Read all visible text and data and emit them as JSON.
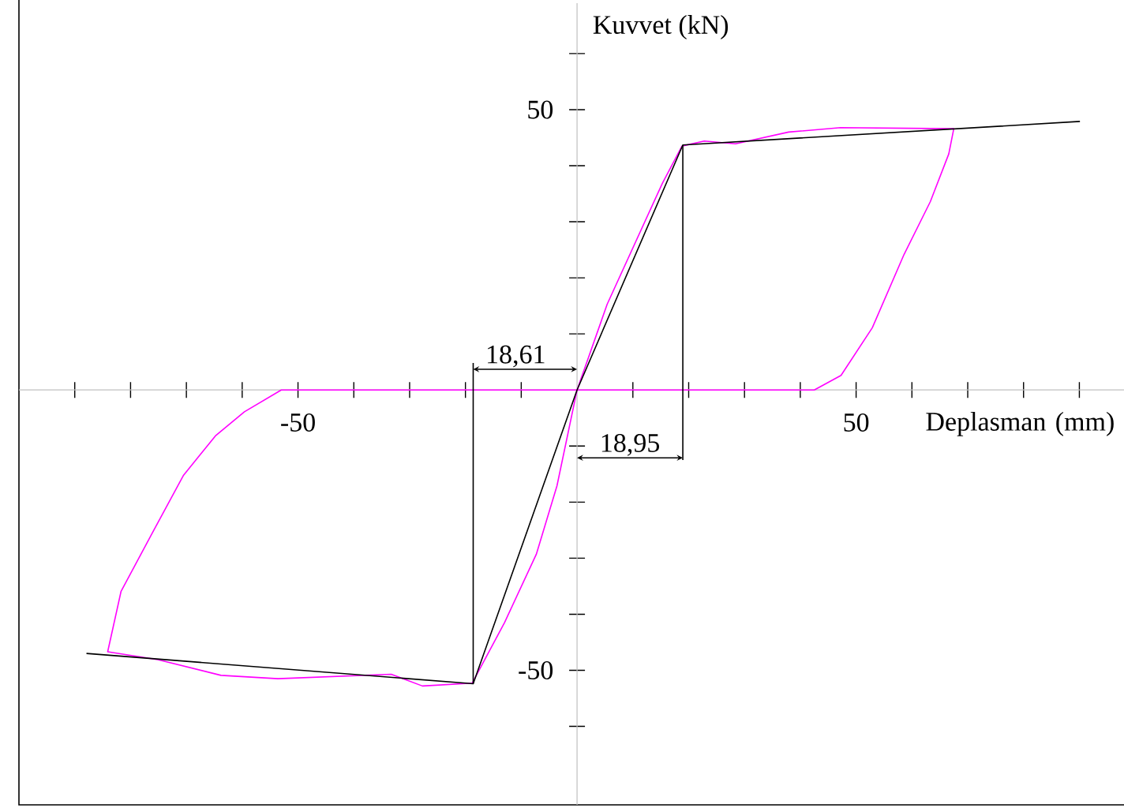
{
  "chart_data": {
    "type": "line",
    "xlabel": "Deplasman (mm)",
    "ylabel": "Kuvvet (kN)",
    "xlim": [
      -100,
      98
    ],
    "ylim": [
      -74,
      69
    ],
    "xticks": [
      {
        "value": -90,
        "label": null
      },
      {
        "value": -80,
        "label": null
      },
      {
        "value": -70,
        "label": null
      },
      {
        "value": -60,
        "label": null
      },
      -50,
      {
        "value": -40,
        "label": null
      },
      {
        "value": -30,
        "label": null
      },
      {
        "value": -20,
        "label": null
      },
      {
        "value": -10,
        "label": null
      },
      {
        "value": 10,
        "label": null
      },
      {
        "value": 20,
        "label": null
      },
      {
        "value": 30,
        "label": null
      },
      {
        "value": 40,
        "label": null
      },
      50,
      {
        "value": 60,
        "label": null
      },
      {
        "value": 70,
        "label": null
      },
      {
        "value": 80,
        "label": null
      },
      {
        "value": 90,
        "label": null
      }
    ],
    "yticks": [
      {
        "value": -60,
        "label": null
      },
      -50,
      {
        "value": -40,
        "label": null
      },
      {
        "value": -30,
        "label": null
      },
      {
        "value": -20,
        "label": null
      },
      {
        "value": -10,
        "label": null
      },
      {
        "value": 10,
        "label": null
      },
      {
        "value": 20,
        "label": null
      },
      {
        "value": 30,
        "label": null
      },
      {
        "value": 40,
        "label": null
      },
      50,
      {
        "value": 60,
        "label": null
      }
    ],
    "series": [
      {
        "color": "#ff00ff",
        "x": [
          0,
          5.4,
          15.3,
          18.8,
          22.8,
          28.4,
          37.9,
          47.2,
          67.5,
          66.6,
          63.3,
          58.6,
          52.9,
          47.3,
          42.5,
          -53,
          -59.6,
          -64.8,
          -70.5,
          -76.1,
          -81.7,
          -84.1,
          -75.1,
          -63.8,
          -53.6,
          -33.3,
          -27.7,
          -18.8,
          -13,
          -7.3,
          -3.6,
          0,
          5.4
        ],
        "values": [
          0,
          15.3,
          36.9,
          43.5,
          44.4,
          43.9,
          46.0,
          46.8,
          46.6,
          42.1,
          33.6,
          24.2,
          11.1,
          2.6,
          0,
          0,
          -3.9,
          -8.2,
          -15.2,
          -25.5,
          -35.9,
          -46.7,
          -48.1,
          -50.9,
          -51.5,
          -50.7,
          -52.8,
          -52.3,
          -41.5,
          -29.3,
          -17.1,
          0,
          15.3
        ]
      },
      {
        "color": "#000000",
        "x": [
          -87.9,
          -18.61,
          0,
          18.95,
          90.1
        ],
        "values": [
          -47.0,
          -52.4,
          0,
          43.7,
          47.9
        ]
      },
      {
        "color": "#000000",
        "x": [
          -18.61,
          -18.61,
          0,
          18.95,
          18.95
        ],
        "values": [
          -52.4,
          4.8,
          null,
          43.7,
          -12.5
        ]
      }
    ],
    "annotations": [
      {
        "text": "18,61",
        "x": -18.61,
        "y": 3.7
      },
      {
        "text": "18,95",
        "x": 18.95,
        "y": -12.1
      }
    ],
    "grid": false,
    "marker": "none",
    "line_style": "solid"
  }
}
